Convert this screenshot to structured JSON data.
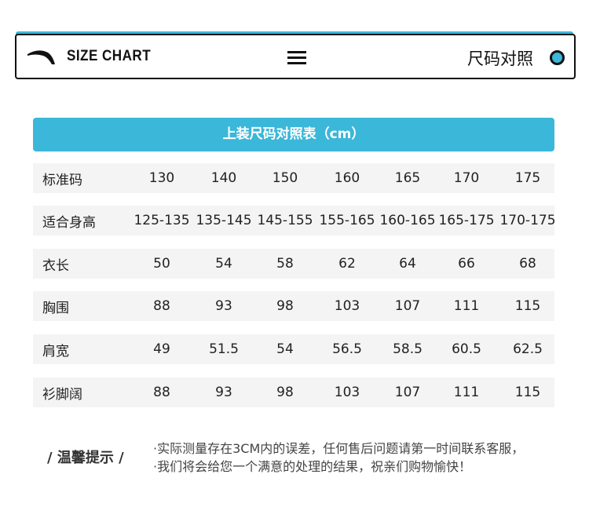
{
  "header": {
    "title": "SIZE CHART",
    "right_label": "尺码对照",
    "logo": "anta-logo",
    "menu_icon": "hamburger-icon",
    "accent": "#3bb7d9"
  },
  "banner": {
    "title": "上装尺码对照表（cm）"
  },
  "table": {
    "rows": [
      {
        "label": "标准码",
        "values": [
          "130",
          "140",
          "150",
          "160",
          "165",
          "170",
          "175"
        ]
      },
      {
        "label": "适合身高",
        "values": [
          "125-135",
          "135-145",
          "145-155",
          "155-165",
          "160-165",
          "165-175",
          "170-175"
        ]
      },
      {
        "label": "衣长",
        "values": [
          "50",
          "54",
          "58",
          "62",
          "64",
          "66",
          "68"
        ]
      },
      {
        "label": "胸围",
        "values": [
          "88",
          "93",
          "98",
          "103",
          "107",
          "111",
          "115"
        ]
      },
      {
        "label": "肩宽",
        "values": [
          "49",
          "51.5",
          "54",
          "56.5",
          "58.5",
          "60.5",
          "62.5"
        ]
      },
      {
        "label": "衫脚阔",
        "values": [
          "88",
          "93",
          "98",
          "103",
          "107",
          "111",
          "115"
        ]
      }
    ]
  },
  "tips": {
    "label": "/ 温馨提示 /",
    "lines": [
      "·实际测量存在3CM内的误差，任何售后问题请第一时间联系客服，",
      "·我们将会给您一个满意的处理的结果，祝亲们购物愉快！"
    ]
  }
}
